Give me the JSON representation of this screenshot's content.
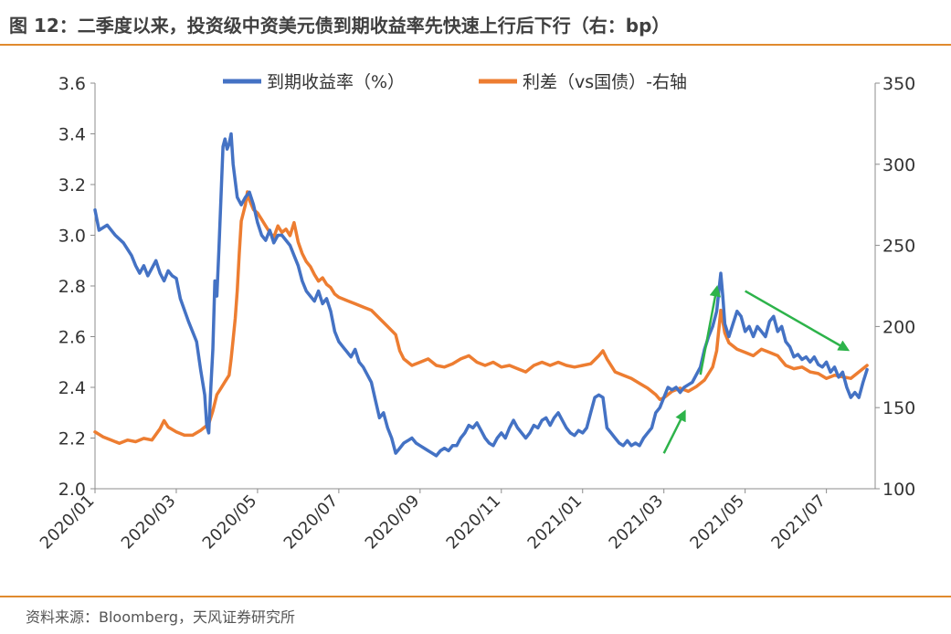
{
  "title": "图 12：二季度以来，投资级中资美元债到期收益率先快速上行后下行（右：bp）",
  "source": "资料来源：Bloomberg，天风证券研究所",
  "colors": {
    "yield": "#4472C4",
    "spread": "#ED7D31",
    "arrow": "#2DB34A",
    "rule": "#E08A2E"
  },
  "chart_data": {
    "type": "line",
    "legend_position": "top",
    "grid": false,
    "y_left": {
      "range": [
        2.0,
        3.6
      ],
      "ticks": [
        "2.0",
        "2.2",
        "2.4",
        "2.6",
        "2.8",
        "3.0",
        "3.2",
        "3.4",
        "3.6"
      ]
    },
    "y_right": {
      "range": [
        100,
        350
      ],
      "ticks": [
        "100",
        "150",
        "200",
        "250",
        "300",
        "350"
      ]
    },
    "x_tick_labels": [
      "2020/01",
      "2020/03",
      "2020/05",
      "2020/07",
      "2020/09",
      "2020/11",
      "2021/01",
      "2021/03",
      "2021/05",
      "2021/07"
    ],
    "x_ticks": [
      0,
      2,
      4,
      6,
      8,
      10,
      12,
      14,
      16,
      18
    ],
    "x_range": [
      0,
      19.2
    ],
    "series": [
      {
        "name": "到期收益率（%）",
        "axis": "left",
        "points": [
          [
            0,
            3.1
          ],
          [
            0.1,
            3.02
          ],
          [
            0.3,
            3.04
          ],
          [
            0.5,
            3.0
          ],
          [
            0.7,
            2.97
          ],
          [
            0.9,
            2.92
          ],
          [
            1.0,
            2.88
          ],
          [
            1.1,
            2.85
          ],
          [
            1.2,
            2.88
          ],
          [
            1.3,
            2.84
          ],
          [
            1.4,
            2.87
          ],
          [
            1.5,
            2.9
          ],
          [
            1.6,
            2.85
          ],
          [
            1.7,
            2.82
          ],
          [
            1.8,
            2.86
          ],
          [
            1.9,
            2.84
          ],
          [
            2.0,
            2.83
          ],
          [
            2.1,
            2.75
          ],
          [
            2.3,
            2.66
          ],
          [
            2.5,
            2.58
          ],
          [
            2.6,
            2.47
          ],
          [
            2.7,
            2.37
          ],
          [
            2.75,
            2.25
          ],
          [
            2.8,
            2.22
          ],
          [
            2.85,
            2.4
          ],
          [
            2.9,
            2.55
          ],
          [
            2.95,
            2.82
          ],
          [
            3.0,
            2.76
          ],
          [
            3.05,
            2.95
          ],
          [
            3.1,
            3.15
          ],
          [
            3.15,
            3.35
          ],
          [
            3.2,
            3.38
          ],
          [
            3.25,
            3.34
          ],
          [
            3.3,
            3.36
          ],
          [
            3.35,
            3.4
          ],
          [
            3.4,
            3.28
          ],
          [
            3.5,
            3.15
          ],
          [
            3.6,
            3.12
          ],
          [
            3.7,
            3.15
          ],
          [
            3.8,
            3.17
          ],
          [
            3.9,
            3.12
          ],
          [
            4.0,
            3.05
          ],
          [
            4.1,
            3.0
          ],
          [
            4.2,
            2.98
          ],
          [
            4.3,
            3.02
          ],
          [
            4.4,
            2.97
          ],
          [
            4.5,
            3.0
          ],
          [
            4.6,
            3.0
          ],
          [
            4.7,
            2.98
          ],
          [
            4.8,
            2.96
          ],
          [
            4.9,
            2.92
          ],
          [
            5.0,
            2.88
          ],
          [
            5.1,
            2.82
          ],
          [
            5.2,
            2.78
          ],
          [
            5.3,
            2.76
          ],
          [
            5.4,
            2.74
          ],
          [
            5.5,
            2.78
          ],
          [
            5.6,
            2.73
          ],
          [
            5.7,
            2.75
          ],
          [
            5.8,
            2.7
          ],
          [
            5.9,
            2.62
          ],
          [
            6.0,
            2.58
          ],
          [
            6.1,
            2.56
          ],
          [
            6.2,
            2.54
          ],
          [
            6.3,
            2.52
          ],
          [
            6.4,
            2.55
          ],
          [
            6.5,
            2.5
          ],
          [
            6.6,
            2.48
          ],
          [
            6.7,
            2.45
          ],
          [
            6.8,
            2.42
          ],
          [
            6.9,
            2.35
          ],
          [
            7.0,
            2.28
          ],
          [
            7.1,
            2.3
          ],
          [
            7.2,
            2.24
          ],
          [
            7.3,
            2.2
          ],
          [
            7.4,
            2.14
          ],
          [
            7.5,
            2.16
          ],
          [
            7.6,
            2.18
          ],
          [
            7.7,
            2.19
          ],
          [
            7.8,
            2.2
          ],
          [
            7.9,
            2.18
          ],
          [
            8.0,
            2.17
          ],
          [
            8.1,
            2.16
          ],
          [
            8.2,
            2.15
          ],
          [
            8.3,
            2.14
          ],
          [
            8.4,
            2.13
          ],
          [
            8.5,
            2.15
          ],
          [
            8.6,
            2.16
          ],
          [
            8.7,
            2.15
          ],
          [
            8.8,
            2.17
          ],
          [
            8.9,
            2.17
          ],
          [
            9.0,
            2.2
          ],
          [
            9.1,
            2.22
          ],
          [
            9.2,
            2.25
          ],
          [
            9.3,
            2.24
          ],
          [
            9.4,
            2.26
          ],
          [
            9.5,
            2.23
          ],
          [
            9.6,
            2.2
          ],
          [
            9.7,
            2.18
          ],
          [
            9.8,
            2.17
          ],
          [
            9.9,
            2.2
          ],
          [
            10.0,
            2.22
          ],
          [
            10.1,
            2.2
          ],
          [
            10.2,
            2.24
          ],
          [
            10.3,
            2.27
          ],
          [
            10.4,
            2.24
          ],
          [
            10.5,
            2.22
          ],
          [
            10.6,
            2.2
          ],
          [
            10.7,
            2.22
          ],
          [
            10.8,
            2.25
          ],
          [
            10.9,
            2.24
          ],
          [
            11.0,
            2.27
          ],
          [
            11.1,
            2.28
          ],
          [
            11.2,
            2.25
          ],
          [
            11.3,
            2.28
          ],
          [
            11.4,
            2.3
          ],
          [
            11.5,
            2.27
          ],
          [
            11.6,
            2.24
          ],
          [
            11.7,
            2.22
          ],
          [
            11.8,
            2.21
          ],
          [
            11.9,
            2.23
          ],
          [
            12.0,
            2.22
          ],
          [
            12.1,
            2.24
          ],
          [
            12.2,
            2.3
          ],
          [
            12.3,
            2.36
          ],
          [
            12.4,
            2.37
          ],
          [
            12.5,
            2.36
          ],
          [
            12.6,
            2.24
          ],
          [
            12.7,
            2.22
          ],
          [
            12.8,
            2.2
          ],
          [
            12.9,
            2.18
          ],
          [
            13.0,
            2.17
          ],
          [
            13.1,
            2.19
          ],
          [
            13.2,
            2.17
          ],
          [
            13.3,
            2.18
          ],
          [
            13.4,
            2.17
          ],
          [
            13.5,
            2.2
          ],
          [
            13.6,
            2.22
          ],
          [
            13.7,
            2.24
          ],
          [
            13.8,
            2.3
          ],
          [
            13.9,
            2.32
          ],
          [
            14.0,
            2.36
          ],
          [
            14.1,
            2.4
          ],
          [
            14.2,
            2.39
          ],
          [
            14.3,
            2.4
          ],
          [
            14.4,
            2.38
          ],
          [
            14.5,
            2.4
          ],
          [
            14.6,
            2.41
          ],
          [
            14.7,
            2.42
          ],
          [
            14.8,
            2.45
          ],
          [
            14.9,
            2.48
          ],
          [
            15.0,
            2.55
          ],
          [
            15.1,
            2.6
          ],
          [
            15.2,
            2.64
          ],
          [
            15.3,
            2.7
          ],
          [
            15.4,
            2.85
          ],
          [
            15.45,
            2.76
          ],
          [
            15.5,
            2.65
          ],
          [
            15.6,
            2.6
          ],
          [
            15.7,
            2.65
          ],
          [
            15.8,
            2.7
          ],
          [
            15.9,
            2.68
          ],
          [
            16.0,
            2.62
          ],
          [
            16.1,
            2.64
          ],
          [
            16.2,
            2.6
          ],
          [
            16.3,
            2.64
          ],
          [
            16.4,
            2.62
          ],
          [
            16.5,
            2.6
          ],
          [
            16.6,
            2.66
          ],
          [
            16.7,
            2.68
          ],
          [
            16.8,
            2.62
          ],
          [
            16.9,
            2.64
          ],
          [
            17.0,
            2.58
          ],
          [
            17.1,
            2.56
          ],
          [
            17.2,
            2.52
          ],
          [
            17.3,
            2.53
          ],
          [
            17.4,
            2.51
          ],
          [
            17.5,
            2.52
          ],
          [
            17.6,
            2.5
          ],
          [
            17.7,
            2.52
          ],
          [
            17.8,
            2.49
          ],
          [
            17.9,
            2.48
          ],
          [
            18.0,
            2.5
          ],
          [
            18.1,
            2.46
          ],
          [
            18.2,
            2.48
          ],
          [
            18.3,
            2.44
          ],
          [
            18.4,
            2.46
          ],
          [
            18.5,
            2.4
          ],
          [
            18.6,
            2.36
          ],
          [
            18.7,
            2.38
          ],
          [
            18.8,
            2.36
          ],
          [
            18.9,
            2.42
          ],
          [
            19.0,
            2.47
          ]
        ]
      },
      {
        "name": "利差（vs国债）-右轴",
        "axis": "right",
        "points": [
          [
            0,
            135
          ],
          [
            0.2,
            132
          ],
          [
            0.4,
            130
          ],
          [
            0.6,
            128
          ],
          [
            0.8,
            130
          ],
          [
            1.0,
            129
          ],
          [
            1.2,
            131
          ],
          [
            1.4,
            130
          ],
          [
            1.6,
            137
          ],
          [
            1.7,
            142
          ],
          [
            1.8,
            138
          ],
          [
            2.0,
            135
          ],
          [
            2.2,
            133
          ],
          [
            2.4,
            133
          ],
          [
            2.6,
            136
          ],
          [
            2.8,
            140
          ],
          [
            2.9,
            148
          ],
          [
            3.0,
            158
          ],
          [
            3.1,
            162
          ],
          [
            3.2,
            166
          ],
          [
            3.3,
            170
          ],
          [
            3.35,
            180
          ],
          [
            3.4,
            192
          ],
          [
            3.45,
            205
          ],
          [
            3.5,
            222
          ],
          [
            3.55,
            245
          ],
          [
            3.6,
            265
          ],
          [
            3.7,
            275
          ],
          [
            3.75,
            283
          ],
          [
            3.8,
            278
          ],
          [
            3.9,
            272
          ],
          [
            4.0,
            270
          ],
          [
            4.1,
            266
          ],
          [
            4.2,
            262
          ],
          [
            4.3,
            258
          ],
          [
            4.4,
            255
          ],
          [
            4.5,
            262
          ],
          [
            4.6,
            258
          ],
          [
            4.7,
            260
          ],
          [
            4.8,
            256
          ],
          [
            4.9,
            264
          ],
          [
            5.0,
            252
          ],
          [
            5.1,
            245
          ],
          [
            5.2,
            240
          ],
          [
            5.3,
            237
          ],
          [
            5.4,
            232
          ],
          [
            5.5,
            228
          ],
          [
            5.6,
            230
          ],
          [
            5.7,
            226
          ],
          [
            5.8,
            224
          ],
          [
            5.9,
            220
          ],
          [
            6.0,
            218
          ],
          [
            6.2,
            216
          ],
          [
            6.4,
            214
          ],
          [
            6.6,
            212
          ],
          [
            6.8,
            210
          ],
          [
            7.0,
            205
          ],
          [
            7.2,
            200
          ],
          [
            7.4,
            195
          ],
          [
            7.5,
            185
          ],
          [
            7.6,
            180
          ],
          [
            7.8,
            176
          ],
          [
            8.0,
            178
          ],
          [
            8.2,
            180
          ],
          [
            8.4,
            176
          ],
          [
            8.6,
            175
          ],
          [
            8.8,
            177
          ],
          [
            9.0,
            180
          ],
          [
            9.2,
            182
          ],
          [
            9.4,
            178
          ],
          [
            9.6,
            176
          ],
          [
            9.8,
            178
          ],
          [
            10.0,
            175
          ],
          [
            10.2,
            176
          ],
          [
            10.4,
            174
          ],
          [
            10.6,
            172
          ],
          [
            10.8,
            176
          ],
          [
            11.0,
            178
          ],
          [
            11.2,
            176
          ],
          [
            11.4,
            178
          ],
          [
            11.6,
            176
          ],
          [
            11.8,
            175
          ],
          [
            12.0,
            176
          ],
          [
            12.2,
            177
          ],
          [
            12.4,
            182
          ],
          [
            12.5,
            185
          ],
          [
            12.6,
            180
          ],
          [
            12.8,
            172
          ],
          [
            13.0,
            170
          ],
          [
            13.2,
            168
          ],
          [
            13.4,
            165
          ],
          [
            13.6,
            162
          ],
          [
            13.8,
            158
          ],
          [
            13.9,
            155
          ],
          [
            14.0,
            156
          ],
          [
            14.2,
            160
          ],
          [
            14.4,
            162
          ],
          [
            14.6,
            160
          ],
          [
            14.8,
            163
          ],
          [
            15.0,
            167
          ],
          [
            15.2,
            175
          ],
          [
            15.3,
            185
          ],
          [
            15.4,
            210
          ],
          [
            15.5,
            196
          ],
          [
            15.6,
            190
          ],
          [
            15.8,
            186
          ],
          [
            16.0,
            184
          ],
          [
            16.2,
            182
          ],
          [
            16.4,
            186
          ],
          [
            16.6,
            184
          ],
          [
            16.8,
            182
          ],
          [
            17.0,
            176
          ],
          [
            17.2,
            174
          ],
          [
            17.4,
            175
          ],
          [
            17.6,
            172
          ],
          [
            17.8,
            171
          ],
          [
            18.0,
            168
          ],
          [
            18.2,
            170
          ],
          [
            18.4,
            169
          ],
          [
            18.6,
            168
          ],
          [
            18.8,
            172
          ],
          [
            19.0,
            176
          ]
        ]
      }
    ]
  }
}
